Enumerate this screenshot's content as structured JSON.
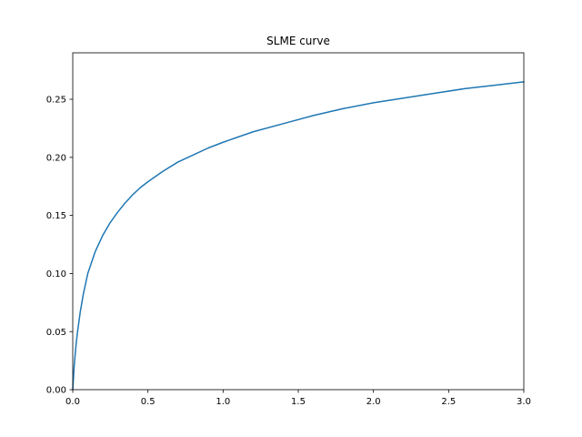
{
  "chart_data": {
    "type": "line",
    "title": "SLME curve",
    "xlabel": "",
    "ylabel": "",
    "xlim": [
      0.0,
      3.0
    ],
    "ylim": [
      0.0,
      0.29
    ],
    "x_ticks": [
      "0.0",
      "0.5",
      "1.0",
      "1.5",
      "2.0",
      "2.5",
      "3.0"
    ],
    "y_ticks": [
      "0.00",
      "0.05",
      "0.10",
      "0.15",
      "0.20",
      "0.25"
    ],
    "grid": false,
    "series": [
      {
        "color": "#1f77b4",
        "x": [
          0.0,
          0.01,
          0.02,
          0.03,
          0.05,
          0.07,
          0.1,
          0.15,
          0.2,
          0.25,
          0.3,
          0.35,
          0.4,
          0.45,
          0.5,
          0.6,
          0.7,
          0.8,
          0.9,
          1.0,
          1.2,
          1.4,
          1.6,
          1.8,
          2.0,
          2.2,
          2.4,
          2.6,
          2.8,
          3.0
        ],
        "y": [
          0.0,
          0.021,
          0.036,
          0.048,
          0.067,
          0.082,
          0.1,
          0.119,
          0.133,
          0.144,
          0.153,
          0.161,
          0.168,
          0.174,
          0.179,
          0.188,
          0.196,
          0.202,
          0.208,
          0.213,
          0.222,
          0.229,
          0.236,
          0.242,
          0.247,
          0.251,
          0.255,
          0.259,
          0.262,
          0.265
        ]
      }
    ]
  }
}
